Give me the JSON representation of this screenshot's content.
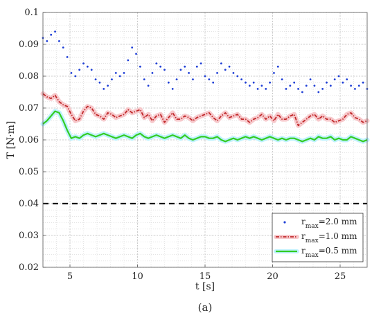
{
  "chart_data": {
    "type": "line",
    "panel_label": "(a)",
    "xlabel": "t [s]",
    "ylabel": "T [N·m]",
    "xlim": [
      3,
      27
    ],
    "ylim": [
      0.02,
      0.1
    ],
    "x_ticks": [
      5,
      10,
      15,
      20,
      25
    ],
    "y_ticks": [
      0.02,
      0.03,
      0.04,
      0.05,
      0.06,
      0.07,
      0.08,
      0.09,
      0.1
    ],
    "x_tick_labels": [
      "5",
      "10",
      "15",
      "20",
      "25"
    ],
    "y_tick_labels": [
      "0.02",
      "0.03",
      "0.04",
      "0.05",
      "0.06",
      "0.07",
      "0.08",
      "0.09",
      "0.1"
    ],
    "grid": true,
    "legend_position": "bottom-right",
    "reference_line": {
      "y": 0.04,
      "style": "dashed",
      "color": "#000000"
    },
    "series": [
      {
        "name": "r_max=2.0 mm",
        "legend_main": "r",
        "legend_sub": "max",
        "legend_rest": "=2.0 mm",
        "style": "dots",
        "color": "#1f3fd6",
        "x": [
          3.0,
          3.3,
          3.6,
          3.9,
          4.2,
          4.5,
          4.8,
          5.1,
          5.4,
          5.7,
          6.0,
          6.3,
          6.6,
          6.9,
          7.2,
          7.5,
          7.8,
          8.1,
          8.4,
          8.7,
          9.0,
          9.3,
          9.6,
          9.9,
          10.2,
          10.5,
          10.8,
          11.1,
          11.4,
          11.7,
          12.0,
          12.3,
          12.6,
          12.9,
          13.2,
          13.5,
          13.8,
          14.1,
          14.4,
          14.7,
          15.0,
          15.3,
          15.6,
          15.9,
          16.2,
          16.5,
          16.8,
          17.1,
          17.4,
          17.7,
          18.0,
          18.3,
          18.6,
          18.9,
          19.2,
          19.5,
          19.8,
          20.1,
          20.4,
          20.7,
          21.0,
          21.3,
          21.6,
          21.9,
          22.2,
          22.5,
          22.8,
          23.1,
          23.4,
          23.7,
          24.0,
          24.3,
          24.6,
          24.9,
          25.2,
          25.5,
          25.8,
          26.1,
          26.4,
          26.7,
          27.0
        ],
        "y": [
          0.092,
          0.091,
          0.093,
          0.094,
          0.091,
          0.089,
          0.086,
          0.081,
          0.08,
          0.082,
          0.084,
          0.083,
          0.082,
          0.079,
          0.078,
          0.076,
          0.077,
          0.079,
          0.081,
          0.08,
          0.081,
          0.085,
          0.089,
          0.087,
          0.083,
          0.079,
          0.077,
          0.081,
          0.084,
          0.083,
          0.082,
          0.078,
          0.076,
          0.079,
          0.082,
          0.083,
          0.081,
          0.079,
          0.083,
          0.084,
          0.08,
          0.079,
          0.078,
          0.081,
          0.084,
          0.082,
          0.083,
          0.081,
          0.08,
          0.079,
          0.078,
          0.077,
          0.078,
          0.076,
          0.077,
          0.076,
          0.078,
          0.081,
          0.083,
          0.079,
          0.076,
          0.077,
          0.078,
          0.076,
          0.075,
          0.077,
          0.079,
          0.077,
          0.075,
          0.076,
          0.078,
          0.077,
          0.079,
          0.08,
          0.078,
          0.079,
          0.077,
          0.076,
          0.077,
          0.078,
          0.076
        ]
      },
      {
        "name": "r_max=1.0 mm",
        "legend_main": "r",
        "legend_sub": "max",
        "legend_rest": "=1.0 mm",
        "style": "dash-dot",
        "color": "#c0282a",
        "halo": "#f7c9cc",
        "x": [
          3.0,
          3.3,
          3.6,
          3.9,
          4.2,
          4.5,
          4.8,
          5.1,
          5.4,
          5.7,
          6.0,
          6.3,
          6.6,
          6.9,
          7.2,
          7.5,
          7.8,
          8.1,
          8.4,
          8.7,
          9.0,
          9.3,
          9.6,
          9.9,
          10.2,
          10.5,
          10.8,
          11.1,
          11.4,
          11.7,
          12.0,
          12.3,
          12.6,
          12.9,
          13.2,
          13.5,
          13.8,
          14.1,
          14.4,
          14.7,
          15.0,
          15.3,
          15.6,
          15.9,
          16.2,
          16.5,
          16.8,
          17.1,
          17.4,
          17.7,
          18.0,
          18.3,
          18.6,
          18.9,
          19.2,
          19.5,
          19.8,
          20.1,
          20.4,
          20.7,
          21.0,
          21.3,
          21.6,
          21.9,
          22.2,
          22.5,
          22.8,
          23.1,
          23.4,
          23.7,
          24.0,
          24.3,
          24.6,
          24.9,
          25.2,
          25.5,
          25.8,
          26.1,
          26.4,
          26.7,
          27.0
        ],
        "y": [
          0.0745,
          0.0735,
          0.073,
          0.074,
          0.072,
          0.071,
          0.0705,
          0.068,
          0.066,
          0.0665,
          0.069,
          0.0705,
          0.07,
          0.068,
          0.0675,
          0.0665,
          0.0685,
          0.068,
          0.067,
          0.0675,
          0.068,
          0.0695,
          0.0685,
          0.069,
          0.0695,
          0.067,
          0.068,
          0.066,
          0.0675,
          0.068,
          0.0655,
          0.067,
          0.0685,
          0.0665,
          0.0665,
          0.0675,
          0.067,
          0.066,
          0.067,
          0.0675,
          0.068,
          0.0685,
          0.067,
          0.066,
          0.0675,
          0.0685,
          0.067,
          0.0675,
          0.068,
          0.0665,
          0.0665,
          0.0655,
          0.0665,
          0.067,
          0.068,
          0.0665,
          0.0675,
          0.066,
          0.068,
          0.0665,
          0.0665,
          0.0675,
          0.068,
          0.0645,
          0.0655,
          0.0665,
          0.0675,
          0.068,
          0.0665,
          0.0675,
          0.0665,
          0.0665,
          0.0655,
          0.066,
          0.0665,
          0.068,
          0.0685,
          0.067,
          0.0665,
          0.0655,
          0.066
        ]
      },
      {
        "name": "r_max=0.5 mm",
        "legend_main": "r",
        "legend_sub": "max",
        "legend_rest": "=0.5 mm",
        "style": "solid",
        "color": "#33cc22",
        "halo": "#bff2ff",
        "x": [
          3.0,
          3.3,
          3.6,
          3.9,
          4.2,
          4.5,
          4.8,
          5.1,
          5.4,
          5.7,
          6.0,
          6.3,
          6.6,
          6.9,
          7.2,
          7.5,
          7.8,
          8.1,
          8.4,
          8.7,
          9.0,
          9.3,
          9.6,
          9.9,
          10.2,
          10.5,
          10.8,
          11.1,
          11.4,
          11.7,
          12.0,
          12.3,
          12.6,
          12.9,
          13.2,
          13.5,
          13.8,
          14.1,
          14.4,
          14.7,
          15.0,
          15.3,
          15.6,
          15.9,
          16.2,
          16.5,
          16.8,
          17.1,
          17.4,
          17.7,
          18.0,
          18.3,
          18.6,
          18.9,
          19.2,
          19.5,
          19.8,
          20.1,
          20.4,
          20.7,
          21.0,
          21.3,
          21.6,
          21.9,
          22.2,
          22.5,
          22.8,
          23.1,
          23.4,
          23.7,
          24.0,
          24.3,
          24.6,
          24.9,
          25.2,
          25.5,
          25.8,
          26.1,
          26.4,
          26.7,
          27.0
        ],
        "y": [
          0.065,
          0.066,
          0.0675,
          0.069,
          0.0685,
          0.066,
          0.063,
          0.0605,
          0.061,
          0.0605,
          0.0615,
          0.062,
          0.0615,
          0.061,
          0.0615,
          0.062,
          0.0615,
          0.061,
          0.0605,
          0.061,
          0.0615,
          0.061,
          0.0605,
          0.0615,
          0.062,
          0.061,
          0.0605,
          0.061,
          0.0615,
          0.061,
          0.0605,
          0.061,
          0.0615,
          0.061,
          0.0605,
          0.0615,
          0.0605,
          0.06,
          0.0605,
          0.061,
          0.061,
          0.0605,
          0.0605,
          0.061,
          0.06,
          0.0595,
          0.06,
          0.0605,
          0.06,
          0.0605,
          0.061,
          0.0605,
          0.061,
          0.0605,
          0.06,
          0.0605,
          0.061,
          0.0605,
          0.06,
          0.0605,
          0.06,
          0.0605,
          0.0605,
          0.06,
          0.0595,
          0.06,
          0.0605,
          0.06,
          0.061,
          0.0605,
          0.0605,
          0.061,
          0.06,
          0.0605,
          0.06,
          0.06,
          0.061,
          0.0605,
          0.06,
          0.0595,
          0.06
        ]
      }
    ]
  }
}
